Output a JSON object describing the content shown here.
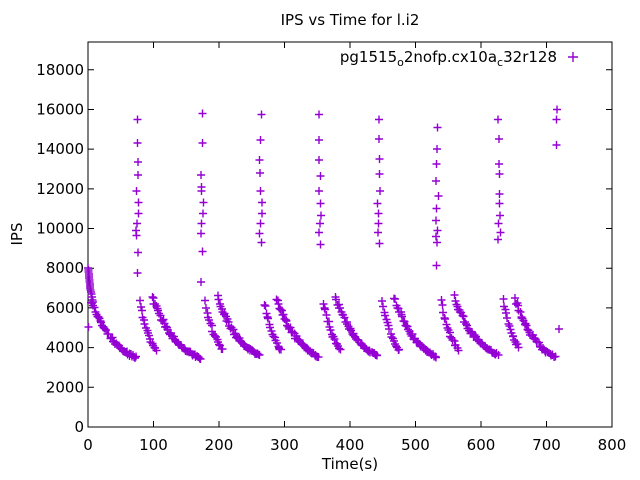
{
  "chart_data": {
    "type": "scatter",
    "title": "IPS vs Time for l.i2",
    "xlabel": "Time(s)",
    "ylabel": "IPS",
    "xlim": [
      0,
      800
    ],
    "ylim": [
      0,
      19400
    ],
    "xticks": [
      0,
      100,
      200,
      300,
      400,
      500,
      600,
      700,
      800
    ],
    "yticks": [
      0,
      2000,
      4000,
      6000,
      8000,
      10000,
      12000,
      14000,
      16000,
      18000
    ],
    "grid": false,
    "legend_position": "top-right-inside",
    "marker": "plus",
    "marker_color": "#9400d3",
    "border_color": "#000000",
    "background_color": "#ffffff",
    "series": [
      {
        "name": "pg1515_o2nofp.cx10a_c32r128",
        "label_parts": [
          {
            "text": "pg1515"
          },
          {
            "sub": "o"
          },
          {
            "text": "2nofp.cx10a"
          },
          {
            "sub": "c"
          },
          {
            "text": "32r128"
          }
        ],
        "initial_points": [
          [
            0.3,
            8000
          ],
          [
            0.6,
            7900
          ],
          [
            0.9,
            7800
          ],
          [
            1.2,
            7700
          ],
          [
            1.5,
            7600
          ],
          [
            1.8,
            7500
          ],
          [
            2.1,
            7400
          ],
          [
            2.4,
            7300
          ],
          [
            2.7,
            7200
          ],
          [
            3.0,
            7100
          ],
          [
            3.4,
            7000
          ],
          [
            3.8,
            6900
          ],
          [
            4.2,
            6800
          ],
          [
            5.0,
            6700
          ],
          [
            6.0,
            6550
          ],
          [
            7.0,
            6400
          ],
          [
            8.0,
            6300
          ],
          [
            0.5,
            5050
          ]
        ],
        "spike_columns": [
          {
            "t": 75,
            "values": [
              7750,
              8800,
              9650,
              9900,
              10250,
              10750,
              11300,
              11900,
              12700,
              13350,
              14300,
              15500
            ]
          },
          {
            "t": 174,
            "values": [
              7300,
              8850,
              9750,
              10250,
              10750,
              11300,
              11900,
              12100,
              12700,
              14300,
              15800
            ]
          },
          {
            "t": 264,
            "values": [
              9300,
              9750,
              10250,
              10750,
              11300,
              11900,
              12800,
              13450,
              14450,
              15750
            ]
          },
          {
            "t": 354,
            "values": [
              9200,
              9800,
              10250,
              10650,
              11250,
              11900,
              12650,
              13450,
              14450,
              15750
            ]
          },
          {
            "t": 444,
            "values": [
              9250,
              9800,
              10250,
              10750,
              11250,
              11900,
              12750,
              13500,
              14500,
              15500
            ]
          },
          {
            "t": 533,
            "values": [
              8150,
              9300,
              9600,
              9900,
              10400,
              11000,
              11650,
              12400,
              13250,
              14000,
              15100
            ]
          },
          {
            "t": 628,
            "values": [
              9450,
              9800,
              10250,
              10650,
              11250,
              11750,
              12750,
              13250,
              14500,
              15500
            ]
          },
          {
            "t": 715,
            "values": [
              14200,
              15500,
              16000
            ]
          }
        ],
        "decay_teeth": [
          [
            5,
            73,
            6400,
            3500,
            46,
            1.8
          ],
          [
            79,
            104,
            6250,
            3850,
            17,
            1.2
          ],
          [
            98,
            172,
            6550,
            3450,
            50,
            1.8
          ],
          [
            179,
            205,
            6300,
            3900,
            17,
            1.2
          ],
          [
            198,
            262,
            6550,
            3600,
            44,
            1.8
          ],
          [
            269,
            295,
            6250,
            3850,
            17,
            1.2
          ],
          [
            288,
            352,
            6500,
            3550,
            44,
            1.8
          ],
          [
            359,
            385,
            6300,
            3900,
            17,
            1.2
          ],
          [
            378,
            442,
            6550,
            3600,
            44,
            1.8
          ],
          [
            449,
            475,
            6250,
            3850,
            17,
            1.2
          ],
          [
            468,
            531,
            6500,
            3550,
            43,
            1.8
          ],
          [
            539,
            565,
            6300,
            3900,
            17,
            1.2
          ],
          [
            559,
            626,
            6550,
            3650,
            45,
            1.8
          ],
          [
            634,
            657,
            6400,
            4050,
            16,
            1.2
          ],
          [
            652,
            713,
            6450,
            3550,
            42,
            1.8
          ]
        ],
        "stray_points": [
          [
            719,
            4950
          ]
        ]
      }
    ]
  }
}
